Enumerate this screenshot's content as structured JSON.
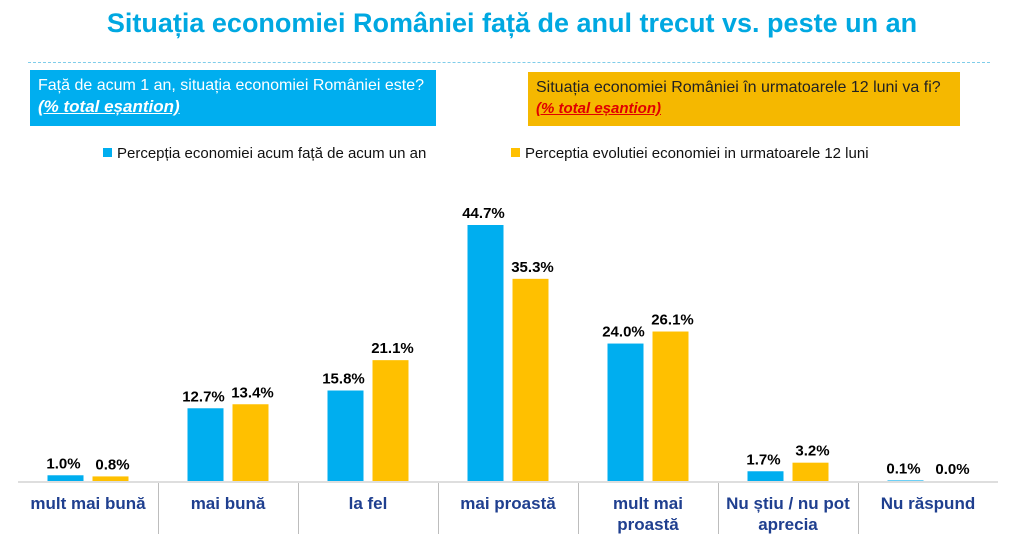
{
  "header": {
    "title": "Situația economiei României față de anul trecut vs. peste un an"
  },
  "boxes": {
    "left_text": "Față de acum 1 an, situația economiei României este?",
    "left_sample": "(% total eșantion)",
    "right_text": "Situația economiei României  în urmatoarele 12 luni va fi?",
    "right_sample": "(% total eșantion)"
  },
  "colors": {
    "blue": "#00aeef",
    "orange": "#ffc000",
    "title": "#00a8e1",
    "category_text": "#1f3f8f"
  },
  "chart_data": {
    "type": "bar",
    "title": "Situația economiei României față de anul trecut vs. peste un an",
    "xlabel": "",
    "ylabel": "% total eșantion",
    "ylim": [
      0,
      50
    ],
    "grid": false,
    "legend_position": "top",
    "categories": [
      "mult mai bună",
      "mai bună",
      "la fel",
      "mai proastă",
      "mult mai proastă",
      "Nu știu / nu pot aprecia",
      "Nu răspund"
    ],
    "series": [
      {
        "name": "Percepția economiei acum față de acum un an",
        "color": "#00aeef",
        "values": [
          1.0,
          12.7,
          15.8,
          44.7,
          24.0,
          1.7,
          0.1
        ],
        "labels": [
          "1.0%",
          "12.7%",
          "15.8%",
          "44.7%",
          "24.0%",
          "1.7%",
          "0.1%"
        ]
      },
      {
        "name": "Perceptia evolutiei economiei in urmatoarele 12 luni",
        "color": "#ffc000",
        "values": [
          0.8,
          13.4,
          21.1,
          35.3,
          26.1,
          3.2,
          0.0
        ],
        "labels": [
          "0.8%",
          "13.4%",
          "21.1%",
          "35.3%",
          "26.1%",
          "3.2%",
          "0.0%"
        ]
      }
    ]
  }
}
